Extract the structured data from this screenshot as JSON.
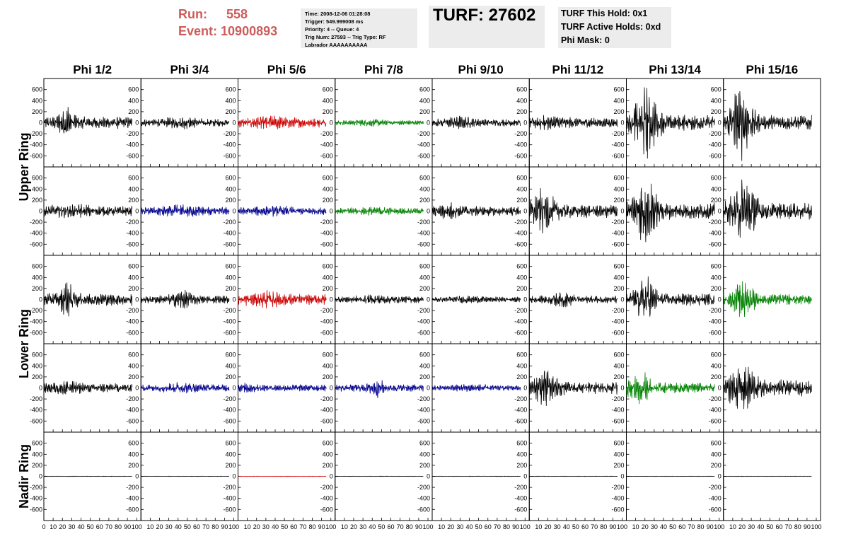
{
  "header": {
    "run_label": "Run:",
    "run_value": "558",
    "event_label": "Event:",
    "event_value": "10900893",
    "info_lines": [
      "Time: 2008-12-06 01:28:08",
      "Trigger: 549.999008 ms",
      "Priority: 4 -- Queue: 4",
      "Trig Num: 27593 -- Trig Type: RF",
      "Labrador AAAAAAAAAA"
    ],
    "turf": "TURF: 27602",
    "hold_lines": [
      "TURF This Hold: 0x1",
      "TURF Active Holds: 0xd",
      "Phi Mask: 0"
    ]
  },
  "chart_data": {
    "type": "line",
    "columns": [
      "Phi 1/2",
      "Phi 3/4",
      "Phi 5/6",
      "Phi 7/8",
      "Phi 9/10",
      "Phi 11/12",
      "Phi 13/14",
      "Phi 15/16"
    ],
    "row_groups": [
      {
        "label": "Upper Ring",
        "rows": [
          0,
          1
        ]
      },
      {
        "label": "Lower Ring",
        "rows": [
          2,
          3
        ]
      },
      {
        "label": "Nadir Ring",
        "rows": [
          4
        ]
      }
    ],
    "xlim": [
      0,
      100
    ],
    "ylim": [
      -750,
      750
    ],
    "yticks": [
      -600,
      -400,
      -200,
      0,
      200,
      400,
      600
    ],
    "xticks": [
      0,
      10,
      20,
      30,
      40,
      50,
      60,
      70,
      80,
      90,
      100
    ],
    "colors": {
      "black": "#000000",
      "red": "#cc0000",
      "green": "#008000",
      "blue": "#00008b"
    },
    "grid": false,
    "waveforms": [
      [
        {
          "color": "black",
          "amp": 90,
          "burst_amp": 180,
          "burst_center": 25,
          "burst_width": 8
        },
        {
          "color": "black",
          "amp": 55,
          "burst_amp": 40,
          "burst_center": 45,
          "burst_width": 20
        },
        {
          "color": "red",
          "amp": 70,
          "burst_amp": 40,
          "burst_center": 35,
          "burst_width": 20
        },
        {
          "color": "green",
          "amp": 35,
          "burst_amp": 20,
          "burst_center": 40,
          "burst_width": 20
        },
        {
          "color": "black",
          "amp": 55,
          "burst_amp": 50,
          "burst_center": 30,
          "burst_width": 15
        },
        {
          "color": "black",
          "amp": 70,
          "burst_amp": 50,
          "burst_center": 20,
          "burst_width": 20
        },
        {
          "color": "black",
          "amp": 120,
          "burst_amp": 420,
          "burst_center": 22,
          "burst_width": 12
        },
        {
          "color": "black",
          "amp": 110,
          "burst_amp": 450,
          "burst_center": 18,
          "burst_width": 12
        }
      ],
      [
        {
          "color": "black",
          "amp": 75,
          "burst_amp": 40,
          "burst_center": 30,
          "burst_width": 20
        },
        {
          "color": "blue",
          "amp": 60,
          "burst_amp": 40,
          "burst_center": 45,
          "burst_width": 20
        },
        {
          "color": "blue",
          "amp": 55,
          "burst_amp": 30,
          "burst_center": 40,
          "burst_width": 20
        },
        {
          "color": "green",
          "amp": 45,
          "burst_amp": 25,
          "burst_center": 40,
          "burst_width": 20
        },
        {
          "color": "black",
          "amp": 70,
          "burst_amp": 60,
          "burst_center": 20,
          "burst_width": 15
        },
        {
          "color": "black",
          "amp": 100,
          "burst_amp": 250,
          "burst_center": 15,
          "burst_width": 12
        },
        {
          "color": "black",
          "amp": 120,
          "burst_amp": 400,
          "burst_center": 20,
          "burst_width": 12
        },
        {
          "color": "black",
          "amp": 120,
          "burst_amp": 420,
          "burst_center": 22,
          "burst_width": 12
        }
      ],
      [
        {
          "color": "black",
          "amp": 90,
          "burst_amp": 180,
          "burst_center": 25,
          "burst_width": 8
        },
        {
          "color": "black",
          "amp": 60,
          "burst_amp": 80,
          "burst_center": 45,
          "burst_width": 12
        },
        {
          "color": "red",
          "amp": 80,
          "burst_amp": 60,
          "burst_center": 30,
          "burst_width": 18
        },
        {
          "color": "black",
          "amp": 50,
          "burst_amp": 20,
          "burst_center": 40,
          "burst_width": 20
        },
        {
          "color": "black",
          "amp": 40,
          "burst_amp": 20,
          "burst_center": 40,
          "burst_width": 20
        },
        {
          "color": "black",
          "amp": 55,
          "burst_amp": 70,
          "burst_center": 35,
          "burst_width": 12
        },
        {
          "color": "black",
          "amp": 90,
          "burst_amp": 300,
          "burst_center": 20,
          "burst_width": 10
        },
        {
          "color": "green",
          "amp": 80,
          "burst_amp": 260,
          "burst_center": 22,
          "burst_width": 10
        }
      ],
      [
        {
          "color": "black",
          "amp": 65,
          "burst_amp": 60,
          "burst_center": 25,
          "burst_width": 15
        },
        {
          "color": "blue",
          "amp": 50,
          "burst_amp": 40,
          "burst_center": 45,
          "burst_width": 20
        },
        {
          "color": "blue",
          "amp": 50,
          "burst_amp": 30,
          "burst_center": 10,
          "burst_width": 10
        },
        {
          "color": "blue",
          "amp": 55,
          "burst_amp": 90,
          "burst_center": 45,
          "burst_width": 8
        },
        {
          "color": "blue",
          "amp": 40,
          "burst_amp": 20,
          "burst_center": 40,
          "burst_width": 20
        },
        {
          "color": "black",
          "amp": 90,
          "burst_amp": 220,
          "burst_center": 18,
          "burst_width": 12
        },
        {
          "color": "green",
          "amp": 80,
          "burst_amp": 180,
          "burst_center": 15,
          "burst_width": 12
        },
        {
          "color": "black",
          "amp": 120,
          "burst_amp": 230,
          "burst_center": 20,
          "burst_width": 15
        }
      ],
      [
        {
          "color": "black",
          "amp": 3,
          "burst_amp": 0,
          "burst_center": 50,
          "burst_width": 10
        },
        {
          "color": "black",
          "amp": 3,
          "burst_amp": 0,
          "burst_center": 50,
          "burst_width": 10
        },
        {
          "color": "red",
          "amp": 3,
          "burst_amp": 0,
          "burst_center": 50,
          "burst_width": 10
        },
        {
          "color": "black",
          "amp": 3,
          "burst_amp": 0,
          "burst_center": 50,
          "burst_width": 10
        },
        {
          "color": "black",
          "amp": 3,
          "burst_amp": 0,
          "burst_center": 50,
          "burst_width": 10
        },
        {
          "color": "black",
          "amp": 3,
          "burst_amp": 0,
          "burst_center": 50,
          "burst_width": 10
        },
        {
          "color": "black",
          "amp": 3,
          "burst_amp": 0,
          "burst_center": 50,
          "burst_width": 10
        },
        {
          "color": "black",
          "amp": 3,
          "burst_amp": 0,
          "burst_center": 50,
          "burst_width": 10
        }
      ]
    ]
  }
}
